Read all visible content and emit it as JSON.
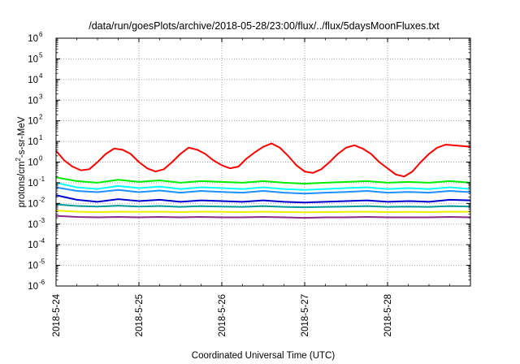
{
  "chart_data": {
    "type": "line",
    "title": "/data/run/goesPlots/archive/2018-05-28/23:00/flux/../flux/5daysMoonFluxes.txt",
    "xlabel": "Coordinated Universal Time (UTC)",
    "ylabel": {
      "prefix": "protons/cm",
      "sup": "2",
      "suffix": "-s-sr-MeV"
    },
    "xlim": [
      0,
      5
    ],
    "x_ticks": [
      {
        "x": 0,
        "label": "2018-5-24"
      },
      {
        "x": 1,
        "label": "2018-5-25"
      },
      {
        "x": 2,
        "label": "2018-5-26"
      },
      {
        "x": 3,
        "label": "2018-5-27"
      },
      {
        "x": 4,
        "label": "2018-5-28"
      }
    ],
    "ylim_exp": [
      -6,
      6
    ],
    "y_scale": "log",
    "y_ticks": [
      {
        "exp": 6,
        "label": "10",
        "sup": "6"
      },
      {
        "exp": 5,
        "label": "10",
        "sup": "5"
      },
      {
        "exp": 4,
        "label": "10",
        "sup": "4"
      },
      {
        "exp": 3,
        "label": "10",
        "sup": "3"
      },
      {
        "exp": 2,
        "label": "10",
        "sup": "2"
      },
      {
        "exp": 1,
        "label": "10",
        "sup": "1"
      },
      {
        "exp": 0,
        "label": "10",
        "sup": "0"
      },
      {
        "exp": -1,
        "label": "10",
        "sup": "-1"
      },
      {
        "exp": -2,
        "label": "10",
        "sup": "-2"
      },
      {
        "exp": -3,
        "label": "10",
        "sup": "-3"
      },
      {
        "exp": -4,
        "label": "10",
        "sup": "-4"
      },
      {
        "exp": -5,
        "label": "10",
        "sup": "-5"
      },
      {
        "exp": -6,
        "label": "10",
        "sup": "-6"
      }
    ],
    "grid": true,
    "series": [
      {
        "color": "#ff0000",
        "x": [
          0,
          0.1,
          0.2,
          0.3,
          0.4,
          0.5,
          0.6,
          0.7,
          0.8,
          0.9,
          1.0,
          1.1,
          1.2,
          1.3,
          1.4,
          1.5,
          1.6,
          1.7,
          1.8,
          1.9,
          2.0,
          2.1,
          2.2,
          2.3,
          2.4,
          2.5,
          2.6,
          2.7,
          2.8,
          2.9,
          3.0,
          3.1,
          3.2,
          3.3,
          3.4,
          3.5,
          3.6,
          3.7,
          3.8,
          3.9,
          4.0,
          4.1,
          4.2,
          4.3,
          4.4,
          4.5,
          4.6,
          4.7,
          4.8,
          4.9,
          5.0
        ],
        "y": [
          3.5,
          1.2,
          0.6,
          0.4,
          0.45,
          1.0,
          2.5,
          4.5,
          4.0,
          2.5,
          1.0,
          0.5,
          0.35,
          0.45,
          1.0,
          2.5,
          5.0,
          4.0,
          2.5,
          1.2,
          0.7,
          0.5,
          0.6,
          1.5,
          3.0,
          5.5,
          8.0,
          5.0,
          2.0,
          0.7,
          0.35,
          0.3,
          0.45,
          1.0,
          2.5,
          5.0,
          6.5,
          4.5,
          2.5,
          1.0,
          0.5,
          0.25,
          0.2,
          0.35,
          1.0,
          2.5,
          5.0,
          7.0,
          6.5,
          6.0,
          5.5
        ]
      },
      {
        "color": "#00ee00",
        "x": [
          0,
          0.25,
          0.5,
          0.75,
          1.0,
          1.25,
          1.5,
          1.75,
          2.0,
          2.25,
          2.5,
          2.75,
          3.0,
          3.25,
          3.5,
          3.75,
          4.0,
          4.25,
          4.5,
          4.75,
          5.0
        ],
        "y": [
          0.18,
          0.12,
          0.1,
          0.14,
          0.11,
          0.13,
          0.1,
          0.12,
          0.11,
          0.1,
          0.12,
          0.1,
          0.09,
          0.1,
          0.11,
          0.12,
          0.1,
          0.11,
          0.1,
          0.12,
          0.1
        ]
      },
      {
        "color": "#00ffff",
        "x": [
          0,
          0.25,
          0.5,
          0.75,
          1.0,
          1.25,
          1.5,
          1.75,
          2.0,
          2.25,
          2.5,
          2.75,
          3.0,
          3.25,
          3.5,
          3.75,
          4.0,
          4.25,
          4.5,
          4.75,
          5.0
        ],
        "y": [
          0.1,
          0.06,
          0.05,
          0.07,
          0.055,
          0.065,
          0.05,
          0.06,
          0.055,
          0.05,
          0.06,
          0.05,
          0.045,
          0.05,
          0.055,
          0.06,
          0.05,
          0.055,
          0.05,
          0.06,
          0.05
        ]
      },
      {
        "color": "#1e90ff",
        "x": [
          0,
          0.25,
          0.5,
          0.75,
          1.0,
          1.25,
          1.5,
          1.75,
          2.0,
          2.25,
          2.5,
          2.75,
          3.0,
          3.25,
          3.5,
          3.75,
          4.0,
          4.25,
          4.5,
          4.75,
          5.0
        ],
        "y": [
          0.06,
          0.04,
          0.035,
          0.045,
          0.035,
          0.042,
          0.033,
          0.04,
          0.036,
          0.033,
          0.04,
          0.033,
          0.03,
          0.033,
          0.036,
          0.04,
          0.033,
          0.036,
          0.033,
          0.04,
          0.035
        ]
      },
      {
        "color": "#0000cd",
        "x": [
          0,
          0.25,
          0.5,
          0.75,
          1.0,
          1.25,
          1.5,
          1.75,
          2.0,
          2.25,
          2.5,
          2.75,
          3.0,
          3.25,
          3.5,
          3.75,
          4.0,
          4.25,
          4.5,
          4.75,
          5.0
        ],
        "y": [
          0.025,
          0.015,
          0.012,
          0.016,
          0.013,
          0.015,
          0.012,
          0.014,
          0.013,
          0.012,
          0.014,
          0.012,
          0.011,
          0.012,
          0.013,
          0.014,
          0.012,
          0.013,
          0.012,
          0.015,
          0.014
        ]
      },
      {
        "color": "#009999",
        "x": [
          0,
          0.25,
          0.5,
          0.75,
          1.0,
          1.25,
          1.5,
          1.75,
          2.0,
          2.25,
          2.5,
          2.75,
          3.0,
          3.25,
          3.5,
          3.75,
          4.0,
          4.25,
          4.5,
          4.75,
          5.0
        ],
        "y": [
          0.009,
          0.0075,
          0.007,
          0.0078,
          0.007,
          0.0075,
          0.0068,
          0.0074,
          0.007,
          0.0068,
          0.0074,
          0.0068,
          0.0065,
          0.0068,
          0.007,
          0.0074,
          0.0068,
          0.007,
          0.0068,
          0.0074,
          0.007
        ]
      },
      {
        "color": "#eeee00",
        "x": [
          0,
          0.25,
          0.5,
          0.75,
          1.0,
          1.25,
          1.5,
          1.75,
          2.0,
          2.25,
          2.5,
          2.75,
          3.0,
          3.25,
          3.5,
          3.75,
          4.0,
          4.25,
          4.5,
          4.75,
          5.0
        ],
        "y": [
          0.0045,
          0.004,
          0.0038,
          0.004,
          0.0039,
          0.004,
          0.0038,
          0.004,
          0.0039,
          0.0038,
          0.004,
          0.0038,
          0.0037,
          0.0038,
          0.0039,
          0.004,
          0.0038,
          0.0039,
          0.0038,
          0.004,
          0.0039
        ]
      },
      {
        "color": "#8b2a8b",
        "x": [
          0,
          0.25,
          0.5,
          0.75,
          1.0,
          1.25,
          1.5,
          1.75,
          2.0,
          2.25,
          2.5,
          2.75,
          3.0,
          3.25,
          3.5,
          3.75,
          4.0,
          4.25,
          4.5,
          4.75,
          5.0
        ],
        "y": [
          0.0025,
          0.0022,
          0.0021,
          0.0022,
          0.0021,
          0.0022,
          0.0021,
          0.0022,
          0.0021,
          0.0021,
          0.0022,
          0.0021,
          0.002,
          0.0021,
          0.0021,
          0.0022,
          0.0021,
          0.0021,
          0.0021,
          0.0022,
          0.0021
        ]
      }
    ]
  }
}
